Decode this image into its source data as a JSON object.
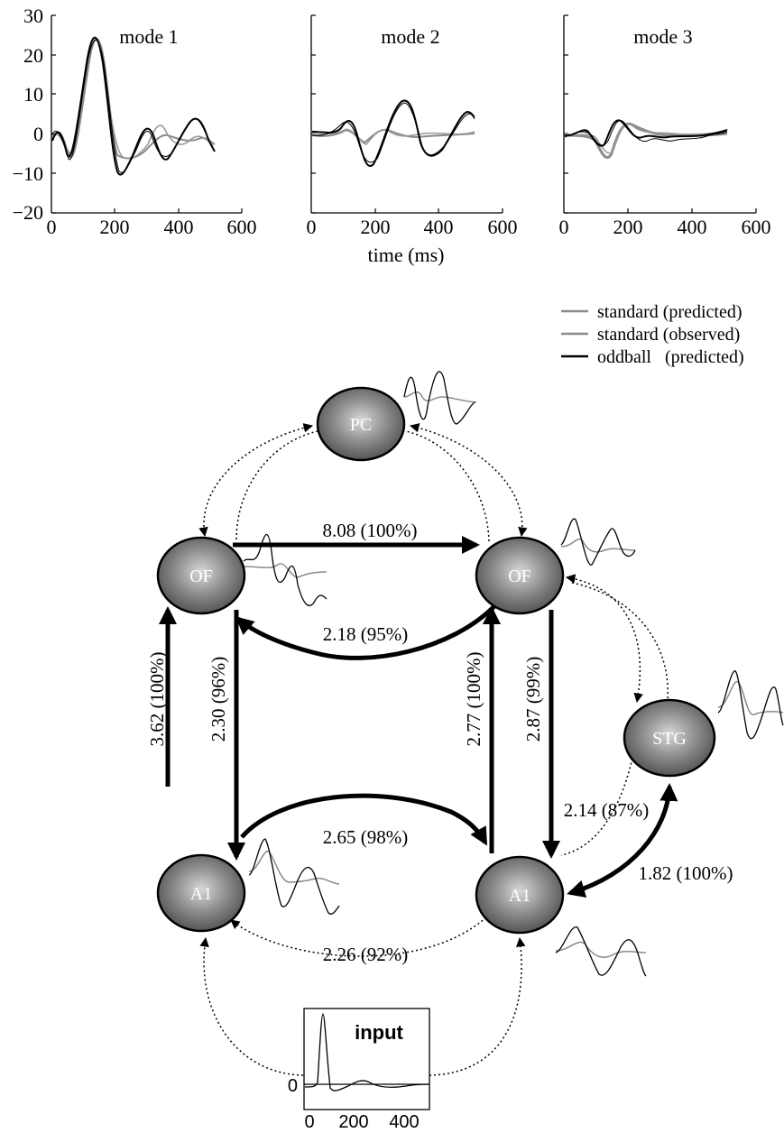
{
  "top_panels": {
    "ylabel_ticks": [
      "30",
      "20",
      "10",
      "0",
      "−10",
      "−20"
    ],
    "xticks": [
      "0",
      "200",
      "400",
      "600"
    ],
    "xlabel": "time (ms)",
    "panels": [
      {
        "title": "mode 1"
      },
      {
        "title": "mode 2"
      },
      {
        "title": "mode 3"
      }
    ]
  },
  "legend": {
    "items": [
      {
        "label": "standard (predicted)",
        "color": "#8a8a8a"
      },
      {
        "label": "standard (observed)",
        "color": "#8a8a8a"
      },
      {
        "label": "oddball  (predicted)",
        "color": "#000000"
      }
    ]
  },
  "network": {
    "nodes": {
      "pc": "PC",
      "of_left": "OF",
      "of_right": "OF",
      "stg": "STG",
      "a1_left": "A1",
      "a1_right": "A1"
    },
    "edges": {
      "of_left_to_of_right": "8.08 (100%)",
      "of_right_to_of_left": "2.18 (95%)",
      "a1_left_to_of_left": "3.62 (100%)",
      "of_left_to_a1_left": "2.30 (96%)",
      "a1_right_to_of_right": "2.77 (100%)",
      "of_right_to_a1_right": "2.87 (99%)",
      "a1_left_to_a1_right": "2.65 (98%)",
      "a1_right_to_a1_left": "2.26 (92%)",
      "stg_to_a1_right": "2.14 (87%)",
      "a1_right_to_stg": "1.82 (100%)"
    },
    "node_color": "#6f6f6f"
  },
  "input_panel": {
    "title": "input",
    "ytick": "0",
    "xticks": [
      "0",
      "200",
      "400"
    ]
  }
}
